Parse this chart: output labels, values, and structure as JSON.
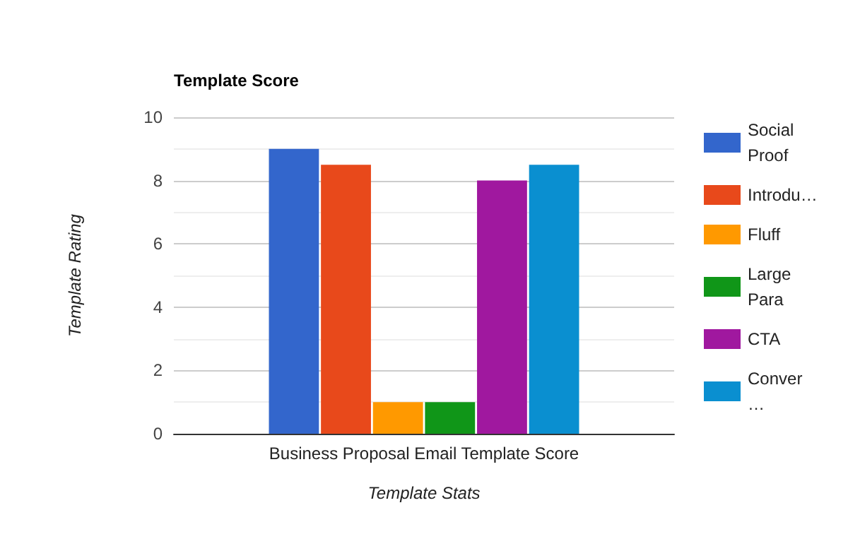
{
  "chart_data": {
    "type": "bar",
    "title": "Template Score",
    "xlabel": "Template Stats",
    "ylabel": "Template Rating",
    "categories": [
      "Business Proposal Email Template Score"
    ],
    "series": [
      {
        "name": "Social Proof",
        "color": "#3366cc",
        "values": [
          9
        ]
      },
      {
        "name": "Introdu…",
        "color": "#e8491b",
        "values": [
          8.5
        ]
      },
      {
        "name": "Fluff",
        "color": "#ff9900",
        "values": [
          1
        ]
      },
      {
        "name": "Large Para",
        "color": "#109618",
        "values": [
          1
        ]
      },
      {
        "name": "CTA",
        "color": "#a0189f",
        "values": [
          8
        ]
      },
      {
        "name": "Conver…",
        "color": "#0a8fd0",
        "values": [
          8.5
        ]
      }
    ],
    "ylim": [
      0,
      10
    ],
    "yticks": [
      0,
      2,
      4,
      6,
      8,
      10
    ],
    "grid": true,
    "legend": "right"
  }
}
